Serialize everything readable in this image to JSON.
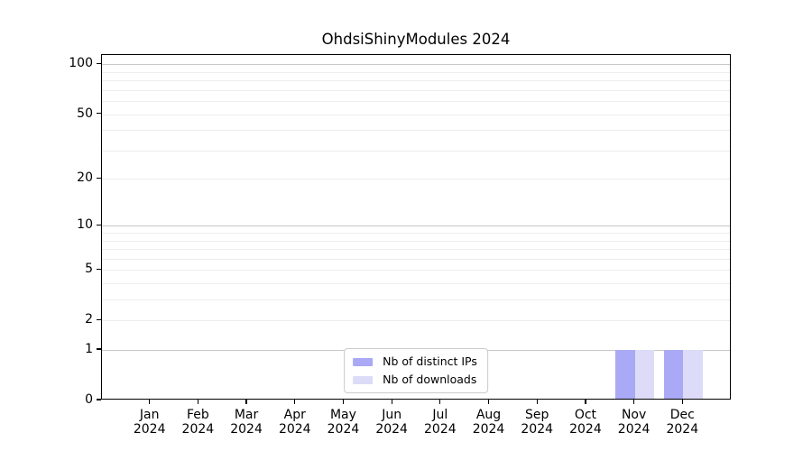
{
  "chart_data": {
    "type": "bar",
    "title": "OhdsiShinyModules 2024",
    "categories": [
      "Jan",
      "Feb",
      "Mar",
      "Apr",
      "May",
      "Jun",
      "Jul",
      "Aug",
      "Sep",
      "Oct",
      "Nov",
      "Dec"
    ],
    "x_tick_year": "2024",
    "series": [
      {
        "name": "Nb of distinct IPs",
        "color": "#a9a9f5",
        "values": [
          0,
          0,
          0,
          0,
          0,
          0,
          0,
          0,
          0,
          0,
          1,
          1
        ]
      },
      {
        "name": "Nb of downloads",
        "color": "#dcdcf8",
        "values": [
          0,
          0,
          0,
          0,
          0,
          0,
          0,
          0,
          0,
          0,
          1,
          1
        ]
      }
    ],
    "xlabel": "",
    "ylabel": "",
    "yscale": "log1p",
    "yticks": [
      0,
      1,
      2,
      5,
      10,
      20,
      50,
      100
    ],
    "ylim": [
      0,
      114
    ],
    "grid": {
      "on": true,
      "major": [
        1,
        10,
        100
      ],
      "minor": [
        2,
        3,
        4,
        5,
        6,
        7,
        8,
        9,
        20,
        30,
        40,
        50,
        60,
        70,
        80,
        90
      ],
      "major_color": "#c8c8c8",
      "minor_color": "#ededed"
    },
    "legend_position": "bottom-center",
    "axis_color": "#000000",
    "background_color": "#ffffff"
  }
}
